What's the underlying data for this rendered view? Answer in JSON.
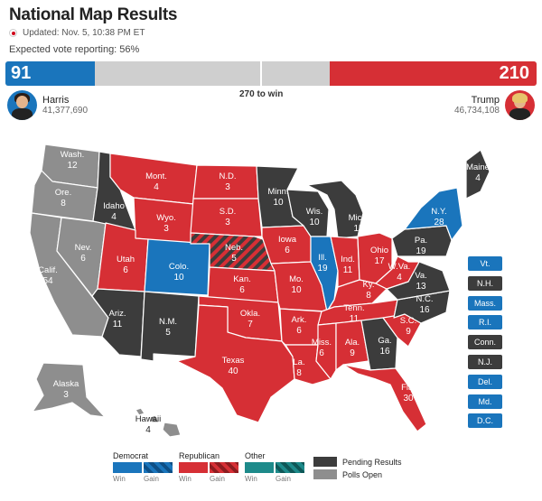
{
  "header": {
    "title": "National Map Results",
    "updated": "Updated: Nov. 5, 10:38 PM ET",
    "reporting": "Expected vote reporting: 56%"
  },
  "tally": {
    "dem_ev": "91",
    "rep_ev": "210",
    "dem_fraction": 0.169,
    "rep_fraction": 0.39,
    "to_win": "270 to win"
  },
  "candidates": {
    "dem": {
      "name": "Harris",
      "votes": "41,377,690"
    },
    "rep": {
      "name": "Trump",
      "votes": "46,734,108"
    }
  },
  "colors": {
    "dem": "#1a75bc",
    "rep": "#d62f35",
    "pending": "#3c3c3c",
    "open": "#8e8e8e",
    "other": "#1d8a8a"
  },
  "states": {
    "WA": {
      "name": "Wash.",
      "ev": "12",
      "status": "open"
    },
    "OR": {
      "name": "Ore.",
      "ev": "8",
      "status": "open"
    },
    "CA": {
      "name": "Calif.",
      "ev": "54",
      "status": "open"
    },
    "NV": {
      "name": "Nev.",
      "ev": "6",
      "status": "open"
    },
    "ID": {
      "name": "Idaho",
      "ev": "4",
      "status": "pending"
    },
    "MT": {
      "name": "Mont.",
      "ev": "4",
      "status": "rep"
    },
    "WY": {
      "name": "Wyo.",
      "ev": "3",
      "status": "rep"
    },
    "UT": {
      "name": "Utah",
      "ev": "6",
      "status": "rep"
    },
    "AZ": {
      "name": "Ariz.",
      "ev": "11",
      "status": "pending"
    },
    "CO": {
      "name": "Colo.",
      "ev": "10",
      "status": "dem"
    },
    "NM": {
      "name": "N.M.",
      "ev": "5",
      "status": "pending"
    },
    "ND": {
      "name": "N.D.",
      "ev": "3",
      "status": "rep"
    },
    "SD": {
      "name": "S.D.",
      "ev": "3",
      "status": "rep"
    },
    "NE": {
      "name": "Neb.",
      "ev": "5",
      "status": "rep-split"
    },
    "KS": {
      "name": "Kan.",
      "ev": "6",
      "status": "rep"
    },
    "OK": {
      "name": "Okla.",
      "ev": "7",
      "status": "rep"
    },
    "TX": {
      "name": "Texas",
      "ev": "40",
      "status": "rep"
    },
    "MN": {
      "name": "Minn.",
      "ev": "10",
      "status": "pending"
    },
    "IA": {
      "name": "Iowa",
      "ev": "6",
      "status": "rep"
    },
    "MO": {
      "name": "Mo.",
      "ev": "10",
      "status": "rep"
    },
    "AR": {
      "name": "Ark.",
      "ev": "6",
      "status": "rep"
    },
    "LA": {
      "name": "La.",
      "ev": "8",
      "status": "rep"
    },
    "WI": {
      "name": "Wis.",
      "ev": "10",
      "status": "pending"
    },
    "IL": {
      "name": "Ill.",
      "ev": "19",
      "status": "dem"
    },
    "MI": {
      "name": "Mich.",
      "ev": "15",
      "status": "pending"
    },
    "IN": {
      "name": "Ind.",
      "ev": "11",
      "status": "rep"
    },
    "OH": {
      "name": "Ohio",
      "ev": "17",
      "status": "rep"
    },
    "KY": {
      "name": "Ky.",
      "ev": "8",
      "status": "rep"
    },
    "TN": {
      "name": "Tenn.",
      "ev": "11",
      "status": "rep"
    },
    "MS": {
      "name": "Miss.",
      "ev": "6",
      "status": "rep"
    },
    "AL": {
      "name": "Ala.",
      "ev": "9",
      "status": "rep"
    },
    "GA": {
      "name": "Ga.",
      "ev": "16",
      "status": "pending"
    },
    "FL": {
      "name": "Fla.",
      "ev": "30",
      "status": "rep"
    },
    "SC": {
      "name": "S.C.",
      "ev": "9",
      "status": "rep"
    },
    "NC": {
      "name": "N.C.",
      "ev": "16",
      "status": "pending"
    },
    "VA": {
      "name": "Va.",
      "ev": "13",
      "status": "pending"
    },
    "WV": {
      "name": "W.Va.",
      "ev": "4",
      "status": "rep"
    },
    "PA": {
      "name": "Pa.",
      "ev": "19",
      "status": "pending"
    },
    "NY": {
      "name": "N.Y.",
      "ev": "28",
      "status": "dem"
    },
    "ME": {
      "name": "Maine",
      "ev": "4",
      "status": "pending"
    },
    "AK": {
      "name": "Alaska",
      "ev": "3",
      "status": "open"
    },
    "HI": {
      "name": "Hawaii",
      "ev": "4",
      "status": "open"
    }
  },
  "small_states": [
    {
      "label": "Vt.",
      "status": "dem"
    },
    {
      "label": "N.H.",
      "status": "pending"
    },
    {
      "label": "Mass.",
      "status": "dem"
    },
    {
      "label": "R.I.",
      "status": "dem"
    },
    {
      "label": "Conn.",
      "status": "pending"
    },
    {
      "label": "N.J.",
      "status": "pending"
    },
    {
      "label": "Del.",
      "status": "dem"
    },
    {
      "label": "Md.",
      "status": "dem"
    },
    {
      "label": "D.C.",
      "status": "dem"
    }
  ],
  "legend": {
    "democrat": "Democrat",
    "republican": "Republican",
    "other": "Other",
    "win": "Win",
    "gain": "Gain",
    "pending": "Pending Results",
    "open": "Polls Open"
  }
}
